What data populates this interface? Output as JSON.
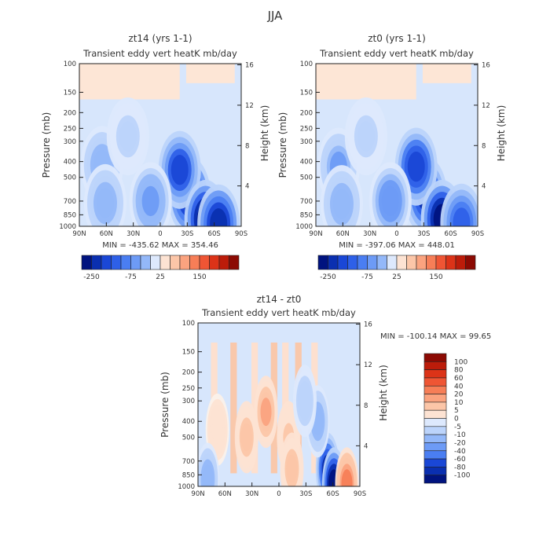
{
  "figure": {
    "title": "JJA"
  },
  "chart_data": [
    {
      "type": "heatmap",
      "title": "zt14 (yrs 1-1)",
      "subtitle": "Transient eddy vert heatK mb/day",
      "xlabel": "",
      "ylabel": "Pressure (mb)",
      "ylabel_right": "Height (km)",
      "x_ticks": [
        "90N",
        "60N",
        "30N",
        "0",
        "30S",
        "60S",
        "90S"
      ],
      "y_ticks": [
        "100",
        "150",
        "200",
        "250",
        "300",
        "400",
        "500",
        "700",
        "850",
        "1000"
      ],
      "y_ticks_right": [
        "16",
        "12",
        "8",
        "4"
      ],
      "ylim": [
        1000,
        100
      ],
      "y_scale": "log",
      "xlim": [
        "90N",
        "90S"
      ],
      "stats": {
        "min_label": "MIN =",
        "min": "-435.62",
        "max_label": "MAX =",
        "max": "354.46"
      },
      "colorbar": {
        "orientation": "horizontal",
        "labels": [
          "-250",
          "-75",
          "25",
          "150"
        ]
      },
      "features": [
        {
          "lat": 0.68,
          "p": 650,
          "value": -260
        },
        {
          "lat": 0.62,
          "p": 450,
          "value": -220
        },
        {
          "lat": 0.78,
          "p": 900,
          "value": -300
        },
        {
          "lat": 0.86,
          "p": 960,
          "value": -260
        },
        {
          "lat": 0.44,
          "p": 700,
          "value": -120
        },
        {
          "lat": 0.14,
          "p": 420,
          "value": -100
        },
        {
          "lat": 0.16,
          "p": 720,
          "value": -90
        },
        {
          "lat": 0.3,
          "p": 280,
          "value": -45
        }
      ]
    },
    {
      "type": "heatmap",
      "title": "zt0 (yrs 1-1)",
      "subtitle": "Transient eddy vert heatK mb/day",
      "xlabel": "",
      "ylabel": "Pressure (mb)",
      "ylabel_right": "Height (km)",
      "x_ticks": [
        "90N",
        "60N",
        "30N",
        "0",
        "30S",
        "60S",
        "90S"
      ],
      "y_ticks": [
        "100",
        "150",
        "200",
        "250",
        "300",
        "400",
        "500",
        "700",
        "850",
        "1000"
      ],
      "y_ticks_right": [
        "16",
        "12",
        "8",
        "4"
      ],
      "ylim": [
        1000,
        100
      ],
      "y_scale": "log",
      "xlim": [
        "90N",
        "90S"
      ],
      "stats": {
        "min_label": "MIN =",
        "min": "-397.06",
        "max_label": "MAX =",
        "max": "448.01"
      },
      "colorbar": {
        "orientation": "horizontal",
        "labels": [
          "-250",
          "-75",
          "25",
          "150"
        ]
      },
      "features": [
        {
          "lat": 0.68,
          "p": 650,
          "value": -250
        },
        {
          "lat": 0.62,
          "p": 430,
          "value": -230
        },
        {
          "lat": 0.78,
          "p": 900,
          "value": -300
        },
        {
          "lat": 0.9,
          "p": 950,
          "value": -200
        },
        {
          "lat": 0.46,
          "p": 700,
          "value": -130
        },
        {
          "lat": 0.14,
          "p": 430,
          "value": -110
        },
        {
          "lat": 0.16,
          "p": 730,
          "value": -90
        },
        {
          "lat": 0.31,
          "p": 280,
          "value": -50
        }
      ]
    },
    {
      "type": "heatmap",
      "title": "zt14 - zt0",
      "subtitle": "Transient eddy vert heatK mb/day",
      "xlabel": "",
      "ylabel": "Pressure (mb)",
      "ylabel_right": "Height (km)",
      "x_ticks": [
        "90N",
        "60N",
        "30N",
        "0",
        "30S",
        "60S",
        "90S"
      ],
      "y_ticks": [
        "100",
        "150",
        "200",
        "250",
        "300",
        "400",
        "500",
        "700",
        "850",
        "1000"
      ],
      "y_ticks_right": [
        "16",
        "12",
        "8",
        "4"
      ],
      "ylim": [
        1000,
        100
      ],
      "y_scale": "log",
      "xlim": [
        "90N",
        "90S"
      ],
      "stats": {
        "min_label": "MIN =",
        "min": "-100.14",
        "max_label": "MAX =",
        "max": "99.65"
      },
      "colorbar": {
        "orientation": "vertical",
        "labels": [
          "100",
          "80",
          "60",
          "40",
          "20",
          "10",
          "5",
          "0",
          "-5",
          "-10",
          "-20",
          "-40",
          "-60",
          "-80",
          "-100"
        ]
      },
      "features": [
        {
          "lat": 0.42,
          "p": 350,
          "value": 25
        },
        {
          "lat": 0.3,
          "p": 500,
          "value": 20
        },
        {
          "lat": 0.56,
          "p": 500,
          "value": 15
        },
        {
          "lat": 0.58,
          "p": 780,
          "value": 20
        },
        {
          "lat": 0.12,
          "p": 450,
          "value": 10
        },
        {
          "lat": 0.8,
          "p": 780,
          "value": -80
        },
        {
          "lat": 0.84,
          "p": 960,
          "value": -100
        },
        {
          "lat": 0.74,
          "p": 400,
          "value": -30
        },
        {
          "lat": 0.66,
          "p": 300,
          "value": -20
        },
        {
          "lat": 0.06,
          "p": 900,
          "value": -30
        },
        {
          "lat": 0.92,
          "p": 960,
          "value": 40
        }
      ]
    }
  ]
}
